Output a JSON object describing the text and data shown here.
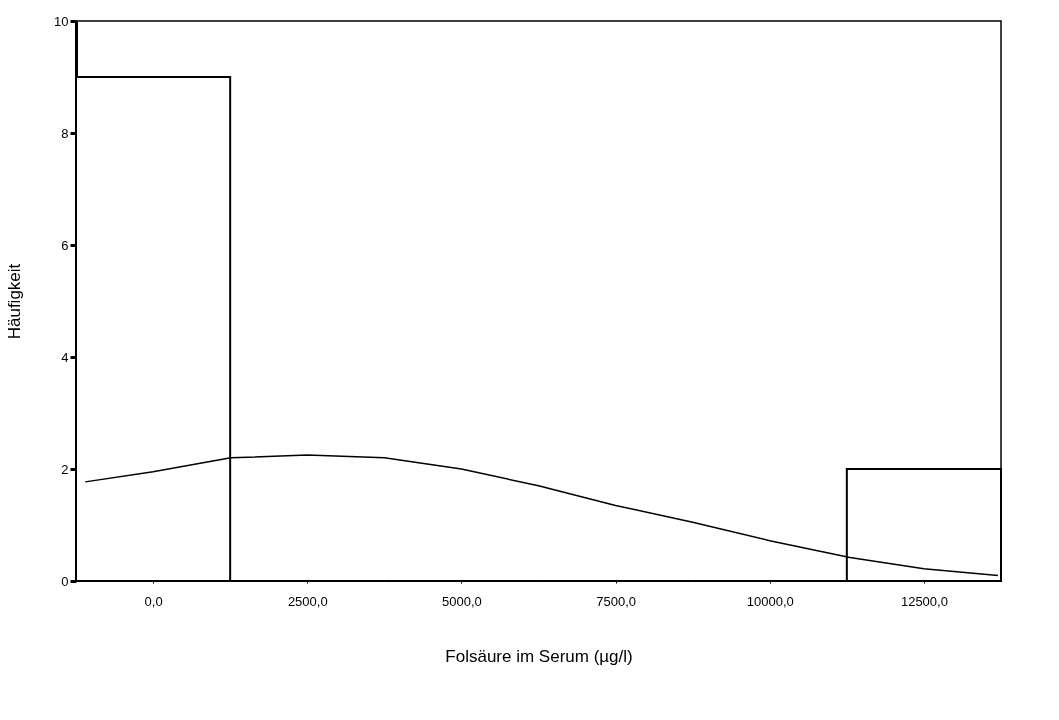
{
  "chart_data": {
    "type": "histogram",
    "xlabel": "Folsäure im Serum (µg/l)",
    "ylabel": "Häufigkeit",
    "bins": [
      -1250,
      1250,
      3750,
      6250,
      8750,
      11250,
      13750
    ],
    "values": [
      9,
      0,
      0,
      0,
      0,
      2
    ],
    "color": "#000000",
    "series": [
      {
        "type": "line",
        "color": "#000000",
        "x": [
          -1100,
          0,
          1260,
          2500,
          3750,
          5000,
          6250,
          7500,
          8750,
          10000,
          11300,
          12500,
          13700
        ],
        "values": [
          1.77,
          1.95,
          2.2,
          2.25,
          2.2,
          2.0,
          1.7,
          1.35,
          1.05,
          0.72,
          0.42,
          0.22,
          0.1
        ]
      }
    ],
    "xlim": [
      -1250,
      13750
    ],
    "ylim": [
      0,
      10
    ],
    "xticks": [
      {
        "value": 0,
        "label": "0,0"
      },
      {
        "value": 2500,
        "label": "2500,0"
      },
      {
        "value": 5000,
        "label": "5000,0"
      },
      {
        "value": 7500,
        "label": "7500,0"
      },
      {
        "value": 10000,
        "label": "10000,0"
      },
      {
        "value": 12500,
        "label": "12500,0"
      }
    ],
    "yticks": [
      0,
      2,
      4,
      6,
      8,
      10
    ],
    "grid": false
  }
}
